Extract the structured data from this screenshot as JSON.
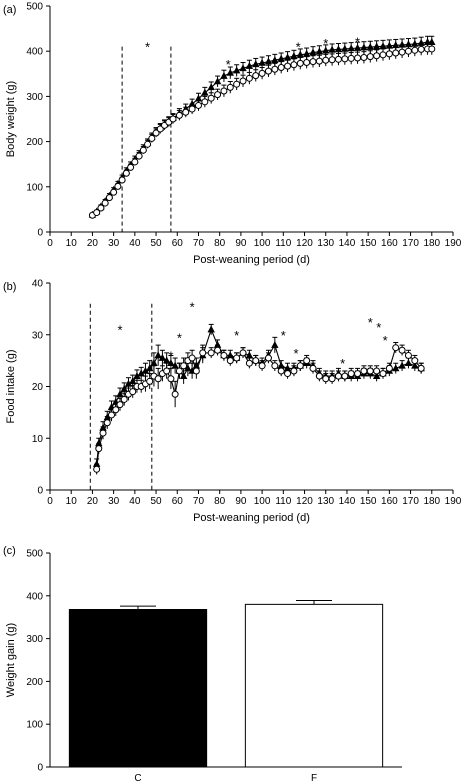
{
  "chart_data": [
    {
      "panel": "(a)",
      "type": "line",
      "xlabel": "Post-weaning period (d)",
      "ylabel": "Body weight (g)",
      "xlim": [
        0,
        190
      ],
      "ylim": [
        0,
        500
      ],
      "xticks": [
        0,
        10,
        20,
        30,
        40,
        50,
        60,
        70,
        80,
        90,
        100,
        110,
        120,
        130,
        140,
        150,
        160,
        170,
        180,
        190
      ],
      "yticks": [
        0,
        100,
        200,
        300,
        400,
        500
      ],
      "grid": false,
      "x": [
        20,
        22,
        24,
        26,
        28,
        30,
        32,
        34,
        36,
        38,
        40,
        42,
        44,
        46,
        48,
        50,
        52,
        54,
        56,
        58,
        61,
        64,
        67,
        70,
        73,
        76,
        79,
        82,
        85,
        88,
        91,
        94,
        97,
        100,
        103,
        106,
        109,
        112,
        115,
        118,
        121,
        124,
        127,
        130,
        133,
        136,
        139,
        142,
        145,
        148,
        151,
        154,
        157,
        160,
        163,
        166,
        169,
        172,
        175,
        178,
        180
      ],
      "series": [
        {
          "marker": "triangle-filled",
          "values": [
            38,
            45,
            56,
            68,
            80,
            93,
            106,
            120,
            135,
            148,
            160,
            172,
            185,
            197,
            210,
            222,
            230,
            238,
            245,
            252,
            262,
            272,
            283,
            295,
            308,
            320,
            333,
            345,
            352,
            357,
            362,
            367,
            371,
            374,
            377,
            380,
            383,
            386,
            389,
            392,
            394,
            397,
            399,
            401,
            403,
            404,
            405,
            406,
            407,
            408,
            409,
            410,
            411,
            412,
            413,
            414,
            415,
            416,
            418,
            420,
            420
          ],
          "errors": [
            3,
            3,
            4,
            4,
            5,
            5,
            6,
            6,
            7,
            7,
            8,
            8,
            8,
            9,
            9,
            9,
            10,
            10,
            10,
            10,
            11,
            11,
            11,
            12,
            12,
            12,
            12,
            13,
            13,
            13,
            13,
            13,
            13,
            13,
            13,
            13,
            13,
            13,
            13,
            13,
            13,
            13,
            13,
            13,
            13,
            13,
            13,
            13,
            13,
            13,
            13,
            13,
            13,
            13,
            13,
            13,
            13,
            13,
            13,
            13,
            13
          ]
        },
        {
          "marker": "circle-open",
          "values": [
            37,
            43,
            53,
            64,
            76,
            88,
            101,
            115,
            130,
            143,
            155,
            168,
            181,
            194,
            207,
            219,
            228,
            236,
            243,
            250,
            258,
            265,
            272,
            280,
            288,
            296,
            304,
            312,
            320,
            327,
            334,
            340,
            346,
            351,
            356,
            360,
            364,
            367,
            370,
            373,
            375,
            377,
            378,
            380,
            381,
            382,
            383,
            384,
            385,
            386,
            388,
            390,
            392,
            394,
            396,
            398,
            400,
            402,
            404,
            405,
            405
          ],
          "errors": [
            3,
            3,
            4,
            4,
            5,
            5,
            6,
            6,
            7,
            7,
            8,
            8,
            8,
            9,
            9,
            9,
            10,
            10,
            10,
            10,
            11,
            11,
            11,
            12,
            12,
            12,
            12,
            13,
            13,
            13,
            13,
            13,
            13,
            13,
            13,
            13,
            13,
            13,
            13,
            13,
            13,
            13,
            13,
            13,
            13,
            13,
            13,
            13,
            13,
            13,
            13,
            13,
            13,
            13,
            13,
            13,
            13,
            13,
            13,
            13,
            13
          ]
        }
      ],
      "dashed_lines_x": [
        34,
        57
      ],
      "annotations": [
        {
          "text": "*",
          "x": 46,
          "y": 410
        },
        {
          "text": "*",
          "x": 84,
          "y": 372
        },
        {
          "text": "*",
          "x": 117,
          "y": 410
        },
        {
          "text": "*",
          "x": 130,
          "y": 418
        },
        {
          "text": "*",
          "x": 145,
          "y": 422
        }
      ]
    },
    {
      "panel": "(b)",
      "type": "line",
      "xlabel": "Post-weaning period (d)",
      "ylabel": "Food intake (g)",
      "xlim": [
        0,
        190
      ],
      "ylim": [
        0,
        40
      ],
      "xticks": [
        0,
        10,
        20,
        30,
        40,
        50,
        60,
        70,
        80,
        90,
        100,
        110,
        120,
        130,
        140,
        150,
        160,
        170,
        180,
        190
      ],
      "yticks": [
        0,
        10,
        20,
        30,
        40
      ],
      "grid": false,
      "x": [
        22,
        23,
        25,
        27,
        29,
        31,
        33,
        35,
        37,
        39,
        41,
        43,
        45,
        47,
        49,
        51,
        53,
        55,
        57,
        59,
        61,
        63,
        65,
        67,
        69,
        72,
        76,
        79,
        82,
        85,
        88,
        91,
        94,
        97,
        100,
        103,
        106,
        109,
        112,
        115,
        118,
        121,
        124,
        127,
        130,
        133,
        136,
        139,
        142,
        145,
        148,
        151,
        154,
        157,
        160,
        163,
        166,
        169,
        172,
        175
      ],
      "series": [
        {
          "marker": "triangle-filled",
          "values": [
            5,
            9,
            12,
            14,
            16,
            17,
            18.5,
            19.5,
            20.5,
            21,
            22,
            22.5,
            23,
            23.5,
            24.5,
            26,
            25.5,
            25,
            24.5,
            24,
            23,
            22,
            23.5,
            23,
            24,
            26,
            31,
            28,
            26,
            26,
            25.5,
            26.5,
            26,
            25,
            24.5,
            26,
            28,
            24,
            23.5,
            23.5,
            24,
            24.5,
            24,
            22.5,
            22,
            22,
            22.5,
            22,
            22,
            22,
            22.5,
            22.5,
            22,
            22.5,
            23,
            23.5,
            24,
            24.5,
            24,
            23.5
          ],
          "errors": [
            1,
            1,
            1.2,
            1.2,
            1.2,
            1.2,
            1.2,
            1.2,
            1.2,
            1.2,
            1.2,
            1.2,
            1.5,
            1.5,
            2,
            2,
            1.5,
            1.5,
            1.5,
            1.5,
            1.5,
            1.5,
            1.5,
            1.5,
            1.5,
            1.5,
            1,
            1,
            1,
            1,
            1,
            1,
            1,
            1,
            1,
            1,
            1.5,
            1,
            1,
            1,
            1,
            1,
            1,
            1,
            1,
            1,
            1,
            1,
            1,
            1,
            1,
            1,
            1,
            1,
            1,
            1,
            1,
            1,
            1,
            1
          ]
        },
        {
          "marker": "circle-open",
          "values": [
            4,
            8,
            11,
            13,
            14.5,
            15.5,
            16.5,
            17.5,
            18.5,
            19,
            20,
            20,
            20.5,
            21,
            22,
            21.5,
            22.5,
            23,
            21.5,
            18.5,
            23,
            24,
            25,
            25.5,
            23,
            26.5,
            26.5,
            27,
            26,
            25,
            25.5,
            26.5,
            24.5,
            25,
            24,
            25.5,
            24,
            23,
            22.5,
            23,
            24,
            25,
            23.5,
            22,
            21.5,
            21.5,
            22,
            22,
            22.5,
            22.5,
            23,
            23,
            23,
            22.5,
            23.5,
            27.5,
            27,
            26,
            25,
            23.5
          ],
          "errors": [
            1,
            1,
            1.2,
            1.2,
            1.2,
            1.2,
            1.2,
            1.2,
            1.2,
            1.2,
            1.2,
            1.2,
            1.5,
            1.5,
            2,
            2,
            1.5,
            1.5,
            2,
            2.5,
            1.5,
            1.5,
            1.5,
            1.5,
            1.5,
            1.5,
            1,
            1,
            1,
            1,
            1,
            1,
            1,
            1,
            1,
            1,
            1,
            1,
            1,
            1,
            1,
            1,
            1,
            1,
            1,
            1,
            1,
            1,
            1,
            1,
            1,
            1,
            1,
            1,
            1,
            1,
            1,
            1,
            1,
            1
          ]
        }
      ],
      "dashed_lines_x": [
        19,
        48
      ],
      "annotations": [
        {
          "text": "*",
          "x": 33,
          "y": 31
        },
        {
          "text": "*",
          "x": 57,
          "y": 26
        },
        {
          "text": "*",
          "x": 61,
          "y": 29.5
        },
        {
          "text": "*",
          "x": 67,
          "y": 35.5
        },
        {
          "text": "*",
          "x": 88,
          "y": 30
        },
        {
          "text": "*",
          "x": 110,
          "y": 30
        },
        {
          "text": "*",
          "x": 116,
          "y": 26.5
        },
        {
          "text": "*",
          "x": 138,
          "y": 24.5
        },
        {
          "text": "*",
          "x": 151,
          "y": 32.5
        },
        {
          "text": "*",
          "x": 155,
          "y": 31.5
        },
        {
          "text": "*",
          "x": 158,
          "y": 29
        }
      ]
    },
    {
      "panel": "(c)",
      "type": "bar",
      "xlabel": "",
      "ylabel": "Weight gain (g)",
      "ylim": [
        0,
        500
      ],
      "yticks": [
        0,
        100,
        200,
        300,
        400,
        500
      ],
      "grid": false,
      "categories": [
        "C",
        "F"
      ],
      "values": [
        368,
        380
      ],
      "errors": [
        8,
        9
      ],
      "colors": [
        "#000000",
        "#ffffff"
      ]
    }
  ]
}
